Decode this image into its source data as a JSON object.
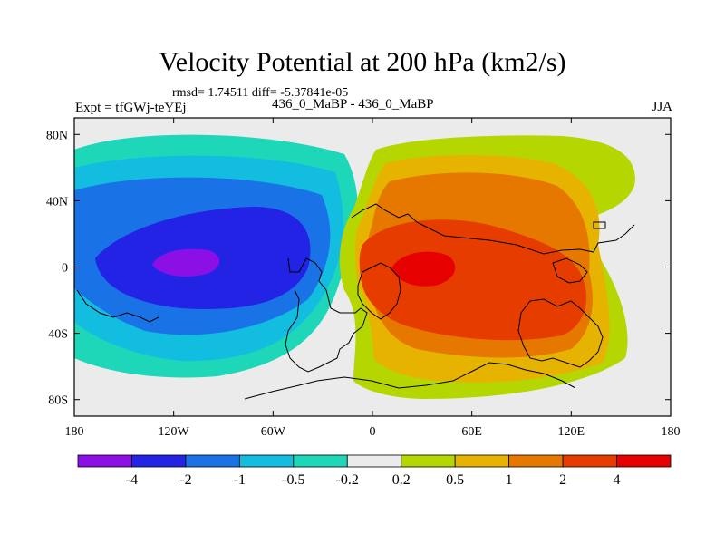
{
  "title": "Velocity Potential at 200 hPa (km2/s)",
  "stats": "rmsd= 1.74511 diff= -5.37841e-05",
  "experiment": "Expt = tfGWj-teYEj",
  "case_diff": "436_0_MaBP - 436_0_MaBP",
  "season": "JJA",
  "chart_data": {
    "type": "heatmap",
    "title": "Velocity Potential at 200 hPa (km2/s)",
    "xlabel": "",
    "ylabel": "",
    "xlim": [
      -180,
      180
    ],
    "ylim": [
      -90,
      90
    ],
    "x_ticks": [
      {
        "value": -180,
        "label": "180"
      },
      {
        "value": -120,
        "label": "120W"
      },
      {
        "value": -60,
        "label": "60W"
      },
      {
        "value": 0,
        "label": "0"
      },
      {
        "value": 60,
        "label": "60E"
      },
      {
        "value": 120,
        "label": "120E"
      },
      {
        "value": 180,
        "label": "180"
      }
    ],
    "y_ticks": [
      {
        "value": 80,
        "label": "80N"
      },
      {
        "value": 40,
        "label": "40N"
      },
      {
        "value": 0,
        "label": "0"
      },
      {
        "value": -40,
        "label": "40S"
      },
      {
        "value": -80,
        "label": "80S"
      }
    ],
    "colorbar": {
      "labels": [
        "-4",
        "-2",
        "-1",
        "-0.5",
        "-0.2",
        "0.2",
        "0.5",
        "1",
        "2",
        "4"
      ],
      "colors": [
        "#8c10e6",
        "#2323e6",
        "#1a73e6",
        "#13bde0",
        "#1ed6b8",
        "#ebebeb",
        "#b5d600",
        "#e6b400",
        "#e67800",
        "#e63c00",
        "#e60000"
      ]
    }
  }
}
